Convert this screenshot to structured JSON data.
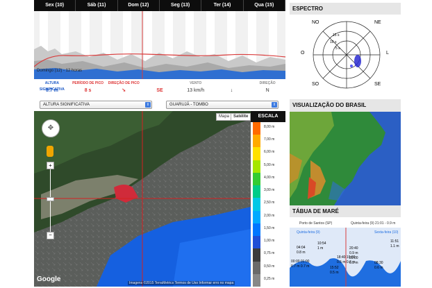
{
  "forecast": {
    "days": [
      "Sex (10)",
      "Sáb (11)",
      "Dom (12)",
      "Seg (13)",
      "Ter (14)",
      "Qua (15)"
    ],
    "caption": "Domingo (12) - 12 horas",
    "metrics": [
      {
        "label": "ALTURA SIGNIFICATIVA",
        "value": "0.7 m"
      },
      {
        "label": "PERÍODO DE PICO",
        "value": "8 s"
      },
      {
        "label": "DIREÇÃO DE PICO",
        "value": "SE"
      },
      {
        "label": "VENTO",
        "value": "13 km/h"
      },
      {
        "label": "DIREÇÃO",
        "value": "N"
      }
    ]
  },
  "espectro": {
    "title": "ESPECTRO",
    "dirs": {
      "n": "NO",
      "ne": "NE",
      "o": "O",
      "l": "L",
      "so": "SO",
      "se": "SE"
    },
    "rings": [
      "15 s",
      "10 s",
      "5 s"
    ]
  },
  "brasil": {
    "title": "VISUALIZAÇÃO DO BRASIL"
  },
  "tide": {
    "title": "TÁBUA DE MARÉ",
    "port": "Porto de Santos (SP)",
    "now": "Quinta-feira (9) 21:01 - 0.9 m",
    "day1": "Quinta-feira (9)",
    "day2": "Sexta-feira (10)",
    "highs": [
      {
        "time": "04:04",
        "height": "0.8 m"
      },
      {
        "time": "10:54",
        "height": "1 m"
      },
      {
        "time": "20:40",
        "height": "0.9 m"
      },
      {
        "time": "11:51",
        "height": "1.1 m"
      }
    ],
    "lows": [
      {
        "time": "00:00 01:00",
        "height": "0.7 m 0.7 m"
      },
      {
        "time": "15:52",
        "height": "0.5 m"
      },
      {
        "time": "08:30",
        "height": "0.6 m"
      }
    ],
    "misc": [
      "18:40 19:00",
      "0.5 m 0.6 m",
      "20:00",
      "0.9 m"
    ]
  },
  "toolbar": {
    "layer_select": "ALTURA SIGNIFICATIVA",
    "location_select": "GUARUJÁ - TOMBO"
  },
  "map": {
    "map_btn": "Mapa",
    "sat_btn": "Satélite",
    "attribution": "Imagens ©2015 TerraMetrics   Termos de Uso   Informar erro no mapa",
    "google": "Google"
  },
  "scale": {
    "title": "ESCALA",
    "values": [
      "8,00 m",
      "7,00 m",
      "6,00 m",
      "5,00 m",
      "4,00 m",
      "3,00 m",
      "2,50 m",
      "2,00 m",
      "1,50 m",
      "1,00 m",
      "0,75 m",
      "0,50 m",
      "0,25 m"
    ],
    "colors": [
      "#ff6a00",
      "#ffaa00",
      "#ffe100",
      "#a6e600",
      "#33cc33",
      "#00cc88",
      "#00c8e6",
      "#00aaff",
      "#0077ff",
      "#1f4fd6",
      "#3c3c3c",
      "#6a6a6a",
      "#888888"
    ]
  }
}
